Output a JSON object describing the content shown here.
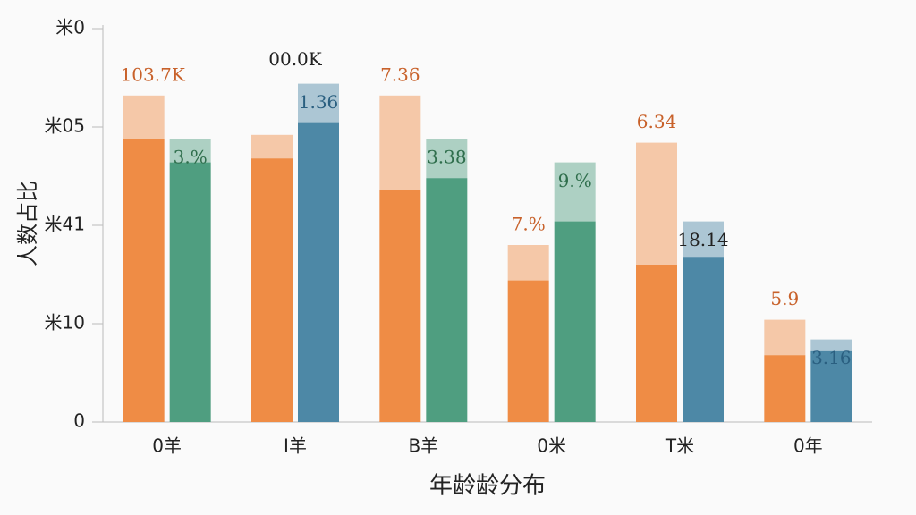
{
  "chart_data": {
    "type": "bar",
    "y_label": "人数占比",
    "x_label": "年龄龄分布",
    "categories": [
      "0羊",
      "I羊",
      "B羊",
      "0米",
      "T米",
      "0年"
    ],
    "ylim": [
      0,
      100
    ],
    "yticks": [
      0,
      {
        "value": 25,
        "label": "米10"
      },
      {
        "value": 50,
        "label": "米41"
      },
      {
        "value": 75,
        "label": "米05"
      },
      {
        "value": 100,
        "label": "米0"
      }
    ],
    "series": [
      {
        "color": "#ef8c45",
        "label_color": "#c8612a",
        "values": [
          72,
          67,
          59,
          36,
          40,
          17
        ],
        "upper": [
          11,
          6,
          24,
          9,
          31,
          9
        ],
        "labels": [
          "103.7K",
          null,
          "7.36",
          "7.%",
          "6.34",
          "5.9"
        ]
      },
      {
        "colors": [
          "#4f9e80",
          "#4d88a6",
          "#4f9e80",
          "#4f9e80",
          "#4d88a6",
          "#4d88a6"
        ],
        "label_colors": [
          "#2f6e4c",
          "#2a5f80",
          "#2f6e4c",
          "#2f6e4c",
          "#222222",
          "#2a5f80"
        ],
        "values": [
          66,
          76,
          62,
          51,
          42,
          18
        ],
        "upper": [
          6,
          10,
          10,
          15,
          9,
          3
        ],
        "labels": [
          "3.%",
          "1.36",
          "3.38",
          "9.%",
          "18.14",
          "3.16"
        ]
      }
    ],
    "top_labels": [
      null,
      "00.0K",
      null,
      null,
      null,
      null
    ]
  }
}
